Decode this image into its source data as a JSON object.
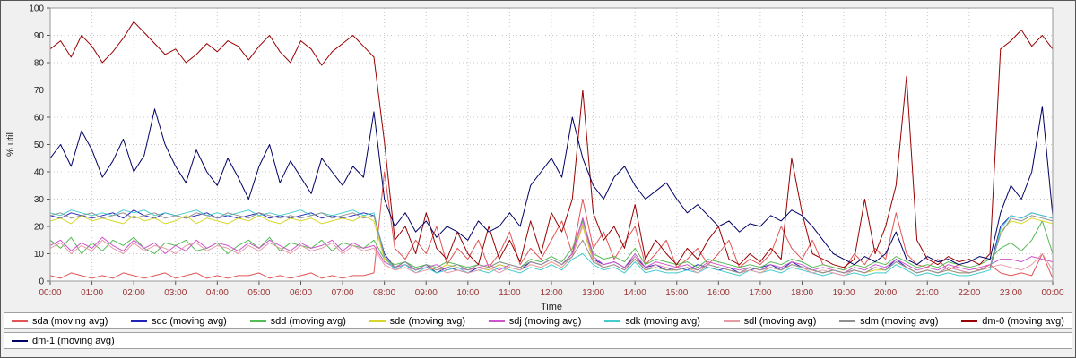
{
  "chart": {
    "ylabel": "% util",
    "xlabel": "Time",
    "plot_bg": "#ffffff",
    "page_bg": "#f0f0f0",
    "grid_color": "#c8c8c8",
    "border_color": "#999999",
    "axis_text_color": "#222222",
    "x_tick_label_color": "#993333",
    "y_ticks": [
      0,
      10,
      20,
      30,
      40,
      50,
      60,
      70,
      80,
      90,
      100
    ],
    "x_tick_labels": [
      "00:00",
      "01:00",
      "02:00",
      "03:00",
      "04:00",
      "05:00",
      "06:00",
      "07:00",
      "08:00",
      "09:00",
      "10:00",
      "11:00",
      "12:00",
      "13:00",
      "14:00",
      "15:00",
      "16:00",
      "17:00",
      "18:00",
      "19:00",
      "20:00",
      "21:00",
      "22:00",
      "23:00",
      "00:00"
    ]
  },
  "legend": {
    "rows": [
      [
        "sda (moving avg)",
        "sdc (moving avg)",
        "sdd (moving avg)",
        "sde (moving avg)",
        "sdj (moving avg)",
        "sdk (moving avg)",
        "sdl (moving avg)",
        "sdm (moving avg)",
        "dm-0 (moving avg)"
      ],
      [
        "dm-1 (moving avg)"
      ]
    ]
  },
  "chart_data": {
    "type": "line",
    "title": "",
    "xlabel": "Time",
    "ylabel": "% util",
    "ylim": [
      0,
      100
    ],
    "x_range_hours": [
      0,
      24
    ],
    "x_step_hours": 0.25,
    "grid": true,
    "legend_position": "bottom",
    "x_tick_labels": [
      "00:00",
      "01:00",
      "02:00",
      "03:00",
      "04:00",
      "05:00",
      "06:00",
      "07:00",
      "08:00",
      "09:00",
      "10:00",
      "11:00",
      "12:00",
      "13:00",
      "14:00",
      "15:00",
      "16:00",
      "17:00",
      "18:00",
      "19:00",
      "20:00",
      "21:00",
      "22:00",
      "23:00",
      "00:00"
    ],
    "series": [
      {
        "name": "sda (moving avg)",
        "color": "#e05555",
        "values": [
          2,
          1,
          3,
          2,
          1,
          2,
          1,
          3,
          2,
          1,
          2,
          3,
          1,
          2,
          3,
          1,
          2,
          1,
          2,
          2,
          3,
          1,
          2,
          1,
          2,
          3,
          1,
          2,
          1,
          2,
          2,
          3,
          40,
          12,
          8,
          15,
          10,
          20,
          6,
          12,
          8,
          15,
          5,
          10,
          18,
          6,
          12,
          8,
          15,
          22,
          10,
          30,
          12,
          18,
          8,
          14,
          20,
          6,
          10,
          15,
          5,
          8,
          12,
          6,
          10,
          15,
          5,
          8,
          6,
          10,
          20,
          12,
          8,
          15,
          6,
          5,
          4,
          10,
          6,
          12,
          8,
          25,
          10,
          6,
          5,
          8,
          4,
          6,
          5,
          4,
          6,
          3,
          2,
          3,
          2,
          10,
          1
        ]
      },
      {
        "name": "sdc (moving avg)",
        "color": "#2222bb",
        "values": [
          24,
          23,
          25,
          24,
          23,
          24,
          25,
          23,
          26,
          24,
          23,
          25,
          24,
          23,
          24,
          25,
          23,
          24,
          23,
          24,
          25,
          23,
          24,
          23,
          24,
          25,
          23,
          24,
          23,
          24,
          25,
          24,
          10,
          5,
          7,
          4,
          6,
          3,
          5,
          4,
          3,
          5,
          4,
          6,
          5,
          4,
          7,
          6,
          8,
          6,
          10,
          23,
          8,
          6,
          7,
          5,
          9,
          5,
          6,
          4,
          5,
          4,
          6,
          5,
          4,
          5,
          3,
          4,
          5,
          6,
          4,
          7,
          5,
          4,
          3,
          4,
          3,
          4,
          3,
          5,
          4,
          8,
          5,
          3,
          4,
          3,
          5,
          4,
          3,
          4,
          5,
          20,
          24,
          23,
          25,
          24,
          23
        ]
      },
      {
        "name": "sdd (moving avg)",
        "color": "#55bb55",
        "values": [
          15,
          12,
          16,
          10,
          14,
          11,
          15,
          13,
          16,
          12,
          10,
          14,
          13,
          15,
          11,
          12,
          14,
          10,
          13,
          15,
          12,
          16,
          11,
          14,
          13,
          12,
          15,
          11,
          14,
          13,
          12,
          15,
          8,
          6,
          7,
          5,
          6,
          5,
          7,
          6,
          5,
          6,
          5,
          7,
          6,
          5,
          8,
          7,
          9,
          7,
          12,
          22,
          10,
          8,
          9,
          7,
          12,
          6,
          8,
          7,
          6,
          7,
          5,
          8,
          7,
          6,
          5,
          6,
          5,
          7,
          6,
          8,
          7,
          5,
          6,
          5,
          4,
          6,
          5,
          7,
          6,
          9,
          7,
          5,
          6,
          5,
          7,
          6,
          5,
          6,
          8,
          12,
          14,
          11,
          15,
          22,
          10
        ]
      },
      {
        "name": "sde (moving avg)",
        "color": "#d6d62a",
        "values": [
          22,
          23,
          21,
          24,
          22,
          23,
          22,
          21,
          24,
          22,
          23,
          21,
          22,
          24,
          21,
          23,
          22,
          21,
          23,
          22,
          24,
          22,
          21,
          23,
          22,
          23,
          21,
          22,
          23,
          22,
          24,
          22,
          8,
          5,
          6,
          4,
          5,
          4,
          6,
          5,
          4,
          5,
          4,
          6,
          5,
          4,
          6,
          5,
          7,
          5,
          9,
          20,
          7,
          5,
          6,
          4,
          8,
          4,
          5,
          4,
          4,
          5,
          4,
          6,
          5,
          4,
          3,
          5,
          4,
          5,
          4,
          6,
          5,
          4,
          3,
          4,
          3,
          4,
          3,
          4,
          4,
          7,
          5,
          3,
          4,
          3,
          4,
          3,
          3,
          4,
          5,
          18,
          22,
          21,
          23,
          22,
          21
        ]
      },
      {
        "name": "sdj (moving avg)",
        "color": "#cc55cc",
        "values": [
          13,
          15,
          11,
          14,
          12,
          16,
          13,
          11,
          15,
          12,
          14,
          10,
          13,
          11,
          15,
          12,
          14,
          13,
          11,
          14,
          12,
          15,
          13,
          11,
          14,
          12,
          13,
          15,
          11,
          14,
          12,
          13,
          7,
          5,
          6,
          4,
          5,
          6,
          4,
          5,
          4,
          5,
          6,
          4,
          6,
          5,
          7,
          6,
          8,
          6,
          10,
          23,
          9,
          6,
          7,
          5,
          10,
          5,
          7,
          6,
          5,
          6,
          4,
          7,
          6,
          5,
          4,
          5,
          4,
          6,
          5,
          7,
          6,
          4,
          5,
          4,
          3,
          5,
          4,
          6,
          5,
          8,
          6,
          4,
          5,
          4,
          6,
          5,
          4,
          5,
          6,
          8,
          8,
          7,
          9,
          8,
          7
        ]
      },
      {
        "name": "sdk (moving avg)",
        "color": "#44cccc",
        "values": [
          25,
          24,
          26,
          25,
          24,
          25,
          24,
          26,
          25,
          26,
          24,
          25,
          24,
          25,
          26,
          24,
          25,
          24,
          25,
          26,
          24,
          25,
          24,
          25,
          26,
          24,
          25,
          24,
          25,
          26,
          24,
          25,
          9,
          4,
          6,
          3,
          5,
          3,
          4,
          5,
          3,
          4,
          3,
          5,
          4,
          3,
          5,
          4,
          6,
          4,
          8,
          10,
          6,
          4,
          5,
          3,
          7,
          3,
          4,
          3,
          3,
          4,
          3,
          5,
          4,
          3,
          2,
          4,
          3,
          4,
          3,
          5,
          4,
          3,
          2,
          3,
          2,
          3,
          2,
          3,
          3,
          6,
          4,
          2,
          3,
          2,
          3,
          2,
          2,
          3,
          4,
          19,
          24,
          23,
          25,
          24,
          23
        ]
      },
      {
        "name": "sdl (moving avg)",
        "color": "#e89aa6",
        "values": [
          12,
          14,
          10,
          13,
          11,
          15,
          12,
          10,
          14,
          11,
          13,
          12,
          10,
          13,
          14,
          11,
          13,
          12,
          10,
          13,
          11,
          14,
          12,
          10,
          13,
          11,
          12,
          14,
          10,
          13,
          11,
          12,
          6,
          4,
          5,
          3,
          4,
          5,
          3,
          4,
          3,
          4,
          5,
          3,
          5,
          4,
          6,
          5,
          7,
          5,
          9,
          21,
          8,
          5,
          6,
          4,
          9,
          4,
          6,
          5,
          4,
          5,
          3,
          6,
          5,
          4,
          3,
          4,
          3,
          5,
          4,
          6,
          5,
          3,
          4,
          3,
          2,
          4,
          3,
          5,
          4,
          7,
          5,
          3,
          4,
          3,
          5,
          4,
          3,
          4,
          5,
          6,
          5,
          4,
          6,
          10,
          4
        ]
      },
      {
        "name": "sdm (moving avg)",
        "color": "#909090",
        "values": [
          24,
          25,
          23,
          24,
          25,
          23,
          24,
          25,
          23,
          24,
          25,
          23,
          24,
          23,
          25,
          24,
          23,
          25,
          24,
          23,
          25,
          24,
          23,
          24,
          23,
          24,
          25,
          23,
          24,
          25,
          23,
          24,
          9,
          5,
          7,
          4,
          6,
          4,
          5,
          6,
          4,
          6,
          5,
          7,
          6,
          5,
          7,
          6,
          8,
          6,
          9,
          15,
          7,
          5,
          6,
          4,
          8,
          4,
          5,
          4,
          4,
          5,
          4,
          6,
          5,
          4,
          3,
          5,
          4,
          5,
          4,
          6,
          5,
          4,
          3,
          4,
          3,
          4,
          3,
          5,
          4,
          7,
          5,
          3,
          4,
          3,
          4,
          3,
          3,
          4,
          5,
          17,
          23,
          22,
          24,
          23,
          22
        ]
      },
      {
        "name": "dm-0 (moving avg)",
        "color": "#990000",
        "values": [
          85,
          88,
          82,
          90,
          86,
          80,
          84,
          89,
          95,
          91,
          87,
          83,
          85,
          80,
          83,
          87,
          84,
          88,
          86,
          81,
          86,
          90,
          84,
          80,
          88,
          85,
          79,
          84,
          87,
          90,
          86,
          82,
          51,
          15,
          20,
          10,
          25,
          12,
          8,
          18,
          10,
          6,
          20,
          8,
          15,
          7,
          22,
          10,
          25,
          18,
          30,
          70,
          25,
          15,
          20,
          12,
          28,
          8,
          15,
          10,
          6,
          12,
          8,
          15,
          20,
          8,
          6,
          10,
          7,
          12,
          8,
          45,
          25,
          10,
          8,
          6,
          5,
          8,
          30,
          10,
          20,
          35,
          75,
          15,
          8,
          6,
          9,
          7,
          8,
          6,
          10,
          85,
          88,
          92,
          86,
          90,
          85
        ]
      },
      {
        "name": "dm-1 (moving avg)",
        "color": "#000066",
        "values": [
          45,
          50,
          42,
          55,
          48,
          38,
          44,
          52,
          40,
          46,
          63,
          50,
          42,
          36,
          48,
          40,
          35,
          45,
          38,
          30,
          42,
          50,
          36,
          44,
          38,
          32,
          45,
          40,
          35,
          42,
          38,
          62,
          30,
          20,
          25,
          18,
          22,
          16,
          20,
          18,
          15,
          22,
          18,
          20,
          25,
          20,
          35,
          40,
          45,
          38,
          60,
          45,
          35,
          30,
          38,
          42,
          35,
          30,
          33,
          36,
          30,
          25,
          28,
          24,
          20,
          22,
          18,
          21,
          20,
          24,
          22,
          26,
          24,
          20,
          15,
          10,
          8,
          6,
          9,
          7,
          10,
          18,
          8,
          6,
          9,
          7,
          8,
          6,
          7,
          9,
          8,
          25,
          35,
          30,
          40,
          64,
          24
        ]
      }
    ]
  }
}
